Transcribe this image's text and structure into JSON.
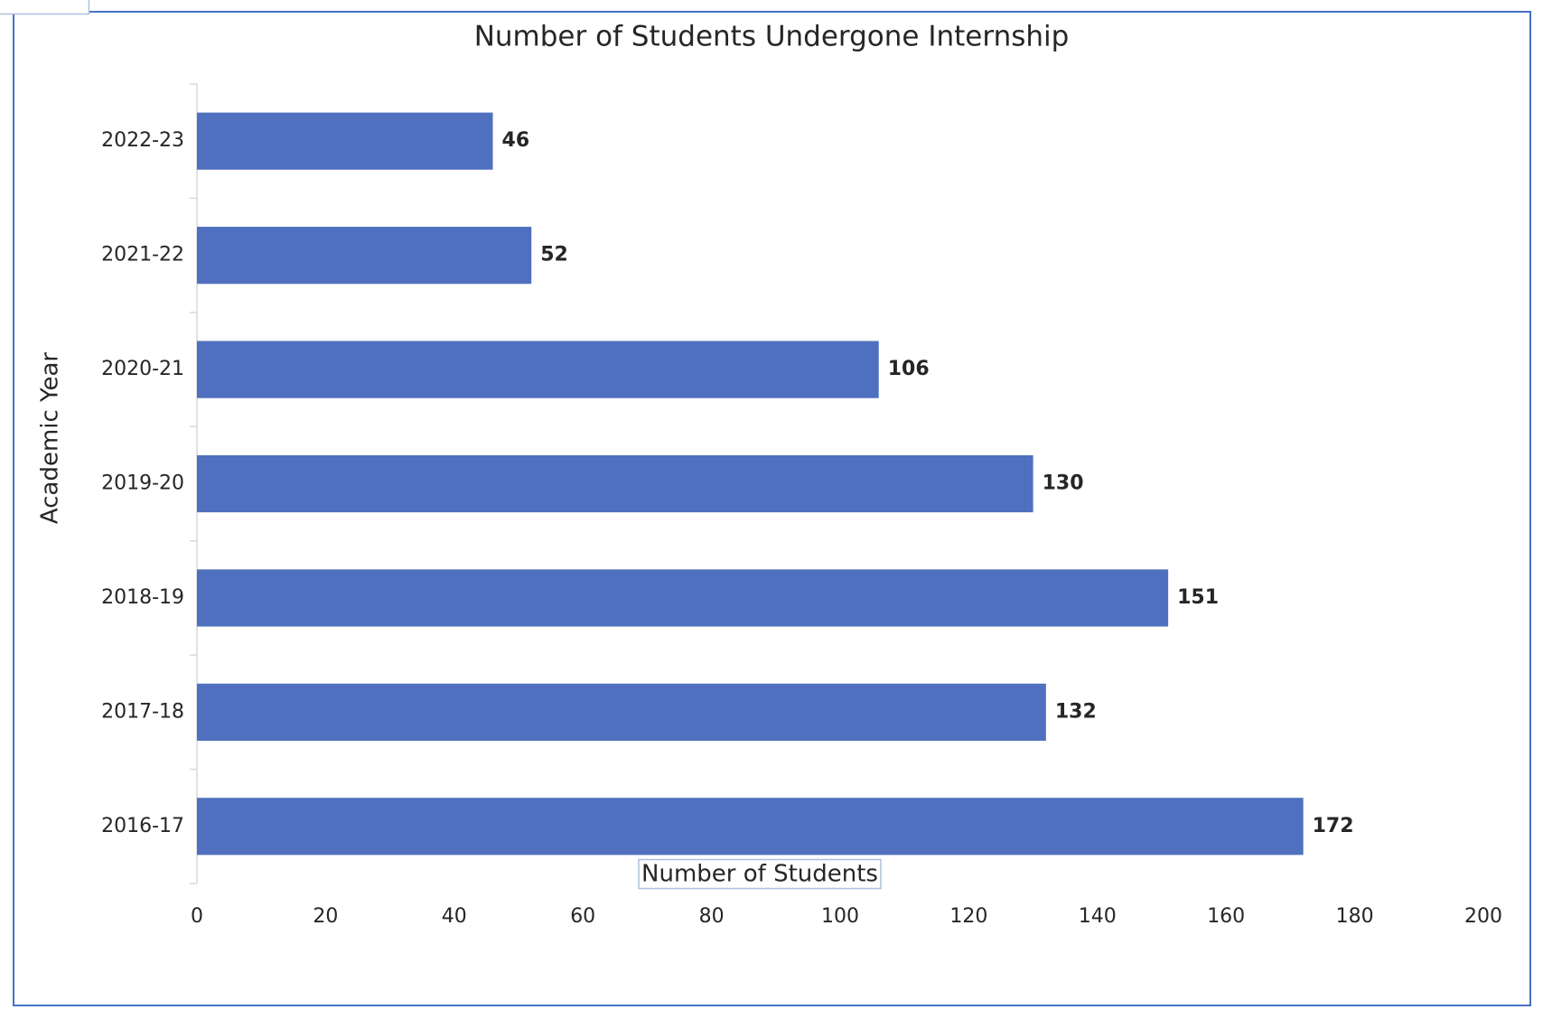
{
  "chart_data": {
    "type": "bar",
    "orientation": "horizontal",
    "title": "Number of Students Undergone Internship",
    "x_label": "Number of Students",
    "y_label": "Academic Year",
    "categories": [
      "2016-17",
      "2017-18",
      "2018-19",
      "2019-20",
      "2020-21",
      "2021-22",
      "2022-23"
    ],
    "values": [
      172,
      132,
      151,
      130,
      106,
      52,
      46
    ],
    "color": "#4f70be",
    "xlim": [
      0,
      200
    ],
    "xticks": [
      0,
      20,
      40,
      60,
      80,
      100,
      120,
      140,
      160,
      180,
      200
    ],
    "grid": false
  }
}
